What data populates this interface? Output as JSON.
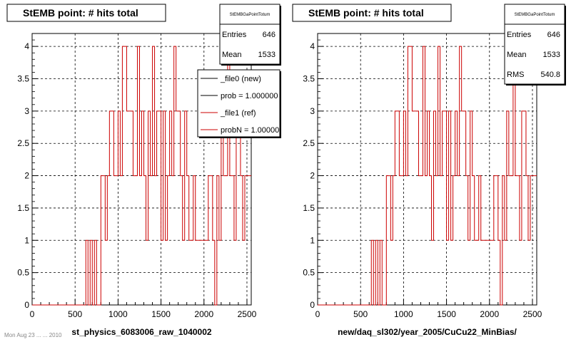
{
  "footer_text": "Mon Aug 23 ... ... 2010",
  "chart_data": [
    {
      "type": "line",
      "title": "StEMB point: # hits total",
      "xlabel": "st_physics_6083006_raw_1040002",
      "ylabel": "",
      "xlim": [
        0,
        2550
      ],
      "ylim": [
        0,
        4.2
      ],
      "xticks": [
        0,
        500,
        1000,
        1500,
        2000,
        2500
      ],
      "yticks": [
        0,
        0.5,
        1,
        1.5,
        2,
        2.5,
        3,
        3.5,
        4
      ],
      "grid": true,
      "stats": {
        "title": "StEMBGaPointTotum",
        "rows": [
          {
            "label": "Entries",
            "value": "646"
          },
          {
            "label": "Mean",
            "value": "1533"
          }
        ]
      },
      "legend": {
        "placement": "top-right",
        "entries": [
          {
            "label": "_file0 (new)",
            "color": "#000000"
          },
          {
            "label": "prob = 1.000000",
            "color": "#000000"
          },
          {
            "label": "_file1 (ref)",
            "color": "#cc0000"
          },
          {
            "label": "probN = 1.000000",
            "color": "#cc0000"
          }
        ]
      },
      "series": [
        {
          "name": "_file1 (ref)",
          "color": "#cc0000",
          "bin_width": 25,
          "x_start": 0,
          "values": [
            0,
            0,
            0,
            0,
            0,
            0,
            0,
            0,
            0,
            0,
            0,
            0,
            0,
            0,
            0,
            0,
            0,
            0,
            0,
            0,
            0,
            0,
            0,
            0,
            0,
            1,
            0,
            1,
            0,
            1,
            0,
            0,
            2,
            2,
            1,
            2,
            3,
            3,
            2,
            2,
            3,
            2,
            4,
            4,
            3,
            3,
            3,
            2,
            2,
            4,
            2,
            3,
            2,
            1,
            3,
            2,
            4,
            2,
            3,
            3,
            1,
            3,
            1,
            2,
            3,
            2,
            4,
            3,
            3,
            2,
            1,
            3,
            2,
            1,
            1,
            2,
            1,
            1,
            1,
            1,
            1,
            1,
            2,
            2,
            1,
            0,
            2,
            1,
            3,
            2,
            2,
            4,
            2,
            2,
            1,
            3,
            3,
            2,
            1,
            2,
            2,
            2
          ]
        }
      ]
    },
    {
      "type": "line",
      "title": "StEMB point: # hits total",
      "xlabel": "new/daq_sl302/year_2005/CuCu22_MinBias/",
      "ylabel": "",
      "xlim": [
        0,
        2550
      ],
      "ylim": [
        0,
        4.2
      ],
      "xticks": [
        0,
        500,
        1000,
        1500,
        2000,
        2500
      ],
      "yticks": [
        0,
        0.5,
        1,
        1.5,
        2,
        2.5,
        3,
        3.5,
        4
      ],
      "grid": true,
      "stats": {
        "title": "StEMBGaPointTotum",
        "rows": [
          {
            "label": "Entries",
            "value": "646"
          },
          {
            "label": "Mean",
            "value": "1533"
          },
          {
            "label": "RMS",
            "value": "540.8"
          }
        ]
      },
      "series": [
        {
          "name": "",
          "color": "#cc0000",
          "bin_width": 25,
          "x_start": 0,
          "values": [
            0,
            0,
            0,
            0,
            0,
            0,
            0,
            0,
            0,
            0,
            0,
            0,
            0,
            0,
            0,
            0,
            0,
            0,
            0,
            0,
            0,
            0,
            0,
            0,
            0,
            1,
            0,
            1,
            0,
            1,
            0,
            0,
            2,
            2,
            1,
            2,
            3,
            3,
            2,
            2,
            3,
            2,
            4,
            4,
            3,
            3,
            3,
            2,
            2,
            4,
            2,
            3,
            2,
            1,
            3,
            2,
            4,
            2,
            3,
            3,
            1,
            3,
            1,
            2,
            3,
            2,
            4,
            3,
            3,
            2,
            1,
            3,
            2,
            1,
            1,
            2,
            1,
            1,
            1,
            1,
            1,
            1,
            2,
            2,
            1,
            0,
            2,
            1,
            3,
            2,
            2,
            4,
            2,
            2,
            1,
            3,
            3,
            2,
            1,
            2,
            2,
            2
          ]
        }
      ]
    }
  ]
}
